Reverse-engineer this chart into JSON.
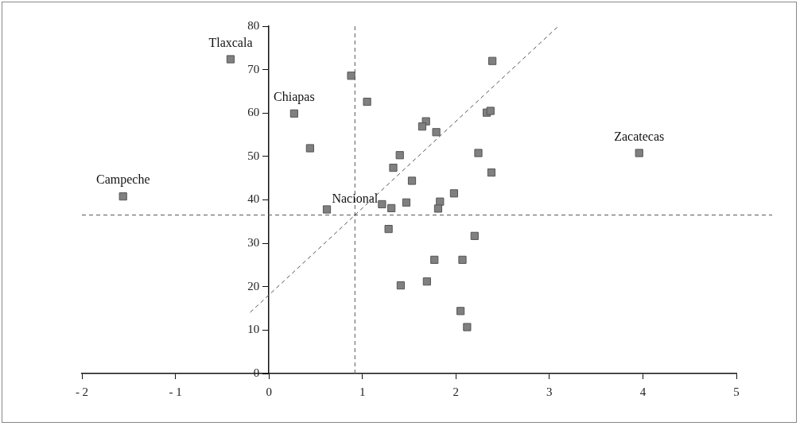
{
  "chart_data": {
    "type": "scatter",
    "marker": "square",
    "grid": false,
    "legend": false,
    "xlim": [
      -2,
      5
    ],
    "xticks": [
      {
        "value": -2,
        "label": "- 2"
      },
      {
        "value": -1,
        "label": "- 1"
      },
      0,
      1,
      2,
      3,
      4,
      5
    ],
    "ylim": [
      0,
      80
    ],
    "yticks": [
      0,
      10,
      20,
      30,
      40,
      50,
      60,
      70,
      80
    ],
    "series": [
      {
        "color": "#808080",
        "x": [
          -1.56,
          -0.41,
          0.27,
          0.44,
          0.62,
          0.88,
          1.05,
          3.96,
          2.39,
          1.4,
          1.33,
          1.53,
          1.21,
          1.31,
          1.47,
          1.83,
          1.81,
          1.98,
          1.68,
          1.64,
          1.79,
          2.33,
          2.37,
          2.24,
          2.38,
          1.28,
          2.2,
          1.77,
          2.07,
          1.69,
          1.41,
          2.05,
          2.12
        ],
        "values": [
          40.8,
          72.4,
          59.9,
          51.9,
          37.8,
          68.6,
          62.6,
          50.8,
          72.0,
          50.3,
          47.4,
          44.4,
          39.0,
          38.1,
          39.4,
          39.6,
          38.0,
          41.5,
          58.1,
          56.9,
          55.6,
          60.1,
          60.5,
          50.8,
          46.3,
          33.3,
          31.7,
          26.2,
          26.2,
          21.2,
          20.3,
          14.4,
          10.7
        ]
      },
      {
        "type": "line",
        "color": "#555555",
        "line_style": "dashed",
        "marker": "none",
        "x": [
          -0.2,
          3.09
        ],
        "values": [
          14.1,
          79.9
        ]
      }
    ],
    "ref_lines": [
      {
        "axis": "x",
        "value": 0.92,
        "color": "#555555",
        "line_style": "dashed"
      },
      {
        "axis": "y",
        "value": 36.5,
        "color": "#555555",
        "line_style": "dashed"
      }
    ],
    "annotations": [
      {
        "text": "Campeche",
        "x": -1.56,
        "y": 40.8
      },
      {
        "text": "Tlaxcala",
        "x": -0.41,
        "y": 72.4
      },
      {
        "text": "Chiapas",
        "x": 0.27,
        "y": 59.9
      },
      {
        "text": "Zacatecas",
        "x": 3.96,
        "y": 50.8
      },
      {
        "text": "Nacional",
        "x": 0.92,
        "y": 36.5
      }
    ]
  }
}
